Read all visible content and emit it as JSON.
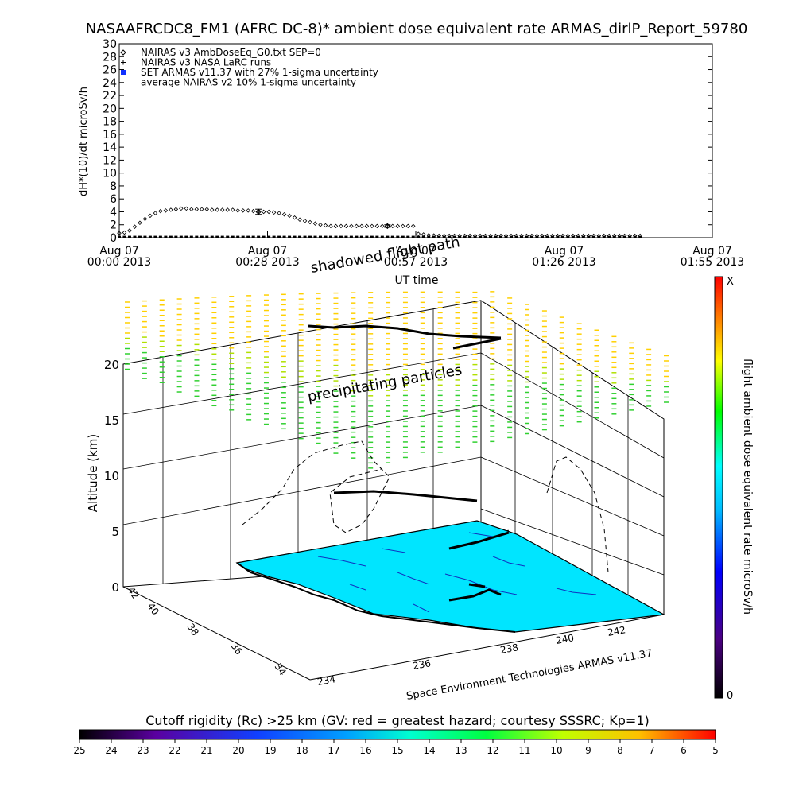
{
  "title": "NASAAFRCDC8_FM1 (AFRC DC-8)* ambient dose equivalent rate ARMAS_dirlP_Report_59780",
  "colors": {
    "dose_scale": [
      "#000000",
      "#4b0082",
      "#0000ff",
      "#00bfff",
      "#00ffff",
      "#00ff00",
      "#ffff00",
      "#ff8000",
      "#ff0000"
    ],
    "cutoff_scale": [
      "#000000",
      "#5a00a0",
      "#1040ff",
      "#00a0ff",
      "#00ffd0",
      "#00ff40",
      "#c0ff00",
      "#ffc000",
      "#ff0000"
    ],
    "ground": "#00e5ff",
    "coast": "#1030c0"
  },
  "chart_data": [
    {
      "type": "scatter",
      "title": "NASAAFRCDC8_FM1 (AFRC DC-8)* ambient dose equivalent rate ARMAS_dirlP_Report_59780",
      "xlabel": "UT time",
      "ylabel": "dH*(10)/dt microSv/h",
      "ylim": [
        0,
        30
      ],
      "xlim_minutes": [
        0,
        115
      ],
      "y_ticks": [
        0,
        2,
        4,
        6,
        8,
        10,
        12,
        14,
        16,
        18,
        20,
        22,
        24,
        26,
        28,
        30
      ],
      "x_ticks": [
        {
          "minute": 0,
          "line1": "Aug 07",
          "line2": "00:00 2013"
        },
        {
          "minute": 28.75,
          "line1": "Aug 07",
          "line2": "00:28 2013"
        },
        {
          "minute": 57.5,
          "line1": "Aug 07",
          "line2": "00:57 2013"
        },
        {
          "minute": 86.25,
          "line1": "Aug 07",
          "line2": "01:26 2013"
        },
        {
          "minute": 115,
          "line1": "Aug 07",
          "line2": "01:55 2013"
        }
      ],
      "legend": [
        {
          "symbol": "diamond",
          "label": "NAIRAS v3 AmbDoseEq_G0.txt SEP=0"
        },
        {
          "symbol": "plus",
          "label": "NAIRAS v3 NASA LaRC runs"
        },
        {
          "symbol": "square",
          "label": "SET ARMAS v11.37 with 27% 1-sigma uncertainty"
        },
        {
          "symbol": "none",
          "label": "average NAIRAS v2 10% 1-sigma uncertainty"
        }
      ],
      "series": [
        {
          "name": "NAIRAS v3 AmbDoseEq_G0.txt SEP=0",
          "x": [
            0,
            1,
            2,
            3,
            4,
            5,
            6,
            7,
            8,
            9,
            10,
            11,
            12,
            13,
            14,
            15,
            16,
            17,
            18,
            19,
            20,
            21,
            22,
            23,
            24,
            25,
            26,
            27,
            28,
            29,
            30,
            31,
            32,
            33,
            34,
            35,
            36,
            37,
            38,
            39,
            40,
            41,
            42,
            43,
            44,
            45,
            46,
            47,
            48,
            49,
            50,
            51,
            52,
            53,
            54,
            55,
            56,
            57,
            58,
            59,
            60,
            61,
            62,
            63,
            64,
            65,
            66,
            67,
            68,
            69,
            70,
            71,
            72,
            73,
            74,
            75,
            76,
            77,
            78,
            79,
            80,
            81,
            82,
            83,
            84,
            85,
            86,
            87,
            88,
            89,
            90,
            91,
            92,
            93,
            94,
            95,
            96,
            97,
            98,
            99,
            100,
            101
          ],
          "y": [
            0.7,
            0.8,
            1.1,
            1.7,
            2.3,
            2.9,
            3.4,
            3.8,
            4.1,
            4.2,
            4.3,
            4.4,
            4.5,
            4.5,
            4.4,
            4.4,
            4.4,
            4.4,
            4.3,
            4.3,
            4.3,
            4.3,
            4.3,
            4.2,
            4.2,
            4.2,
            4.1,
            4.1,
            4.0,
            4.0,
            3.9,
            3.8,
            3.6,
            3.4,
            3.1,
            2.8,
            2.6,
            2.4,
            2.2,
            2.0,
            1.9,
            1.8,
            1.8,
            1.8,
            1.8,
            1.8,
            1.8,
            1.8,
            1.8,
            1.8,
            1.8,
            1.8,
            1.8,
            1.8,
            1.8,
            1.8,
            1.8,
            1.8,
            0.6,
            0.5,
            0.4,
            0.35,
            0.3,
            0.3,
            0.3,
            0.3,
            0.3,
            0.3,
            0.3,
            0.3,
            0.3,
            0.3,
            0.3,
            0.3,
            0.3,
            0.3,
            0.3,
            0.3,
            0.3,
            0.3,
            0.3,
            0.3,
            0.3,
            0.3,
            0.3,
            0.3,
            0.3,
            0.3,
            0.3,
            0.3,
            0.3,
            0.3,
            0.3,
            0.3,
            0.3,
            0.3,
            0.3,
            0.3,
            0.3,
            0.3,
            0.3,
            0.3
          ]
        },
        {
          "name": "SET ARMAS v11.37 with 27% 1-sigma uncertainty",
          "x_range": [
            0,
            101
          ],
          "value": 0.05
        },
        {
          "name": "average NAIRAS v2 10% 1-sigma uncertainty",
          "x": [
            27,
            52
          ],
          "y": [
            4.0,
            1.8
          ],
          "err": [
            0.4,
            0.2
          ]
        }
      ]
    },
    {
      "type": "3d-scatter",
      "xlabel": "",
      "ylabel": "",
      "zlabel": "Altitude (km)",
      "zlim": [
        0,
        20
      ],
      "z_ticks": [
        0,
        5,
        10,
        15,
        20
      ],
      "lat_ticks": [
        "42",
        "40",
        "38",
        "36",
        "34"
      ],
      "lon_ticks": [
        "234",
        "236",
        "238",
        "240",
        "242"
      ],
      "annotations": [
        "shadowed flight path",
        "precipitating particles"
      ],
      "credit": "Space Environment Technologies ARMAS v11.37",
      "colorbar": {
        "label": "flight ambient dose equivalent rate microSv/h",
        "min_label": "0",
        "max_label": "X"
      }
    },
    {
      "type": "colorbar",
      "title": "Cutoff rigidity (Rc) >25 km (GV: red = greatest hazard; courtesy SSSRC; Kp=1)",
      "tick_labels": [
        "25",
        "24",
        "23",
        "22",
        "21",
        "20",
        "19",
        "18",
        "17",
        "16",
        "15",
        "14",
        "13",
        "12",
        "11",
        "10",
        "9",
        "8",
        "7",
        "6",
        "5"
      ]
    }
  ]
}
